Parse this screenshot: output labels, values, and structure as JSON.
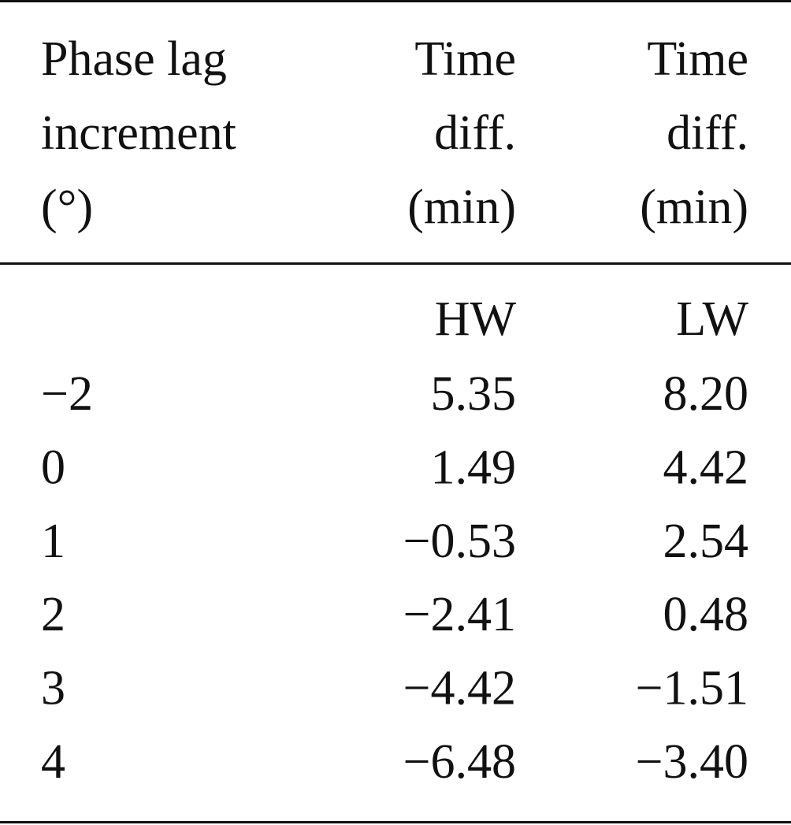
{
  "table": {
    "header": [
      [
        "Phase lag",
        "increment",
        "(°)"
      ],
      [
        "Time",
        "diff.",
        "(min)"
      ],
      [
        "Time",
        "diff.",
        "(min)"
      ]
    ],
    "subheader": [
      "HW",
      "LW"
    ],
    "rows": [
      [
        "−2",
        "5.35",
        "8.20"
      ],
      [
        "0",
        "1.49",
        "4.42"
      ],
      [
        "1",
        "−0.53",
        "2.54"
      ],
      [
        "2",
        "−2.41",
        "0.48"
      ],
      [
        "3",
        "−4.42",
        "−1.51"
      ],
      [
        "4",
        "−6.48",
        "−3.40"
      ]
    ]
  }
}
